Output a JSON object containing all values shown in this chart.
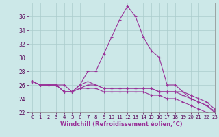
{
  "xlabel": "Windchill (Refroidissement éolien,°C)",
  "background_color": "#cce8e8",
  "grid_color": "#b0d0d0",
  "line_color": "#993399",
  "ylim": [
    22,
    38
  ],
  "xlim": [
    -0.5,
    23
  ],
  "yticks": [
    22,
    24,
    26,
    28,
    30,
    32,
    34,
    36
  ],
  "xticks": [
    0,
    1,
    2,
    3,
    4,
    5,
    6,
    7,
    8,
    9,
    10,
    11,
    12,
    13,
    14,
    15,
    16,
    17,
    18,
    19,
    20,
    21,
    22,
    23
  ],
  "series": [
    [
      26.5,
      26.0,
      26.0,
      26.0,
      26.0,
      25.0,
      26.0,
      28.0,
      28.0,
      30.5,
      33.0,
      35.5,
      37.5,
      36.0,
      33.0,
      31.0,
      30.0,
      26.0,
      26.0,
      25.0,
      24.0,
      23.5,
      23.0,
      22.0
    ],
    [
      26.5,
      26.0,
      26.0,
      26.0,
      25.0,
      25.0,
      26.0,
      26.5,
      26.0,
      25.5,
      25.5,
      25.5,
      25.5,
      25.5,
      25.5,
      25.5,
      25.0,
      25.0,
      25.0,
      25.0,
      24.5,
      24.0,
      23.5,
      22.5
    ],
    [
      26.5,
      26.0,
      26.0,
      26.0,
      25.0,
      25.0,
      25.5,
      26.0,
      26.0,
      25.5,
      25.5,
      25.5,
      25.5,
      25.5,
      25.5,
      25.5,
      25.0,
      25.0,
      25.0,
      24.5,
      24.0,
      23.5,
      23.0,
      22.2
    ],
    [
      26.5,
      26.0,
      26.0,
      26.0,
      25.0,
      25.0,
      25.5,
      25.5,
      25.5,
      25.0,
      25.0,
      25.0,
      25.0,
      25.0,
      25.0,
      24.5,
      24.5,
      24.0,
      24.0,
      23.5,
      23.0,
      22.5,
      22.0,
      22.0
    ]
  ]
}
